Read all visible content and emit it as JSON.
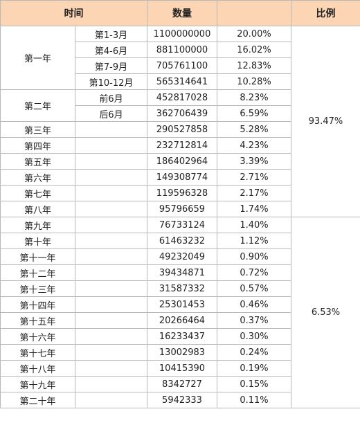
{
  "header": {
    "time": "时间",
    "amount": "数量",
    "ratio": "比例"
  },
  "blocks": [
    {
      "ratio": "93.47%",
      "groups": [
        {
          "period": "第一年",
          "rows": [
            {
              "sub": "第1-3月",
              "amount": "1100000000",
              "share": "20.00%"
            },
            {
              "sub": "第4-6月",
              "amount": "881100000",
              "share": "16.02%"
            },
            {
              "sub": "第7-9月",
              "amount": "705761100",
              "share": "12.83%"
            },
            {
              "sub": "第10-12月",
              "amount": "565314641",
              "share": "10.28%"
            }
          ]
        },
        {
          "period": "第二年",
          "rows": [
            {
              "sub": "前6月",
              "amount": "452817028",
              "share": "8.23%"
            },
            {
              "sub": "后6月",
              "amount": "362706439",
              "share": "6.59%"
            }
          ]
        },
        {
          "period": "第三年",
          "rows": [
            {
              "amount": "290527858",
              "share": "5.28%"
            }
          ]
        },
        {
          "period": "第四年",
          "rows": [
            {
              "amount": "232712814",
              "share": "4.23%"
            }
          ]
        },
        {
          "period": "第五年",
          "rows": [
            {
              "amount": "186402964",
              "share": "3.39%"
            }
          ]
        },
        {
          "period": "第六年",
          "rows": [
            {
              "amount": "149308774",
              "share": "2.71%"
            }
          ]
        },
        {
          "period": "第七年",
          "rows": [
            {
              "amount": "119596328",
              "share": "2.17%"
            }
          ]
        },
        {
          "period": "第八年",
          "rows": [
            {
              "amount": "95796659",
              "share": "1.74%"
            }
          ]
        }
      ]
    },
    {
      "ratio": "6.53%",
      "groups": [
        {
          "period": "第九年",
          "rows": [
            {
              "amount": "76733124",
              "share": "1.40%"
            }
          ]
        },
        {
          "period": "第十年",
          "rows": [
            {
              "amount": "61463232",
              "share": "1.12%"
            }
          ]
        },
        {
          "period": "第十一年",
          "rows": [
            {
              "amount": "49232049",
              "share": "0.90%"
            }
          ]
        },
        {
          "period": "第十二年",
          "rows": [
            {
              "amount": "39434871",
              "share": "0.72%"
            }
          ]
        },
        {
          "period": "第十三年",
          "rows": [
            {
              "amount": "31587332",
              "share": "0.57%"
            }
          ]
        },
        {
          "period": "第十四年",
          "rows": [
            {
              "amount": "25301453",
              "share": "0.46%"
            }
          ]
        },
        {
          "period": "第十五年",
          "rows": [
            {
              "amount": "20266464",
              "share": "0.37%"
            }
          ]
        },
        {
          "period": "第十六年",
          "rows": [
            {
              "amount": "16233437",
              "share": "0.30%"
            }
          ]
        },
        {
          "period": "第十七年",
          "rows": [
            {
              "amount": "13002983",
              "share": "0.24%"
            }
          ]
        },
        {
          "period": "第十八年",
          "rows": [
            {
              "amount": "10415390",
              "share": "0.19%"
            }
          ]
        },
        {
          "period": "第十九年",
          "rows": [
            {
              "amount": "8342727",
              "share": "0.15%"
            }
          ]
        },
        {
          "period": "第二十年",
          "rows": [
            {
              "amount": "5942333",
              "share": "0.11%"
            }
          ]
        }
      ]
    }
  ]
}
